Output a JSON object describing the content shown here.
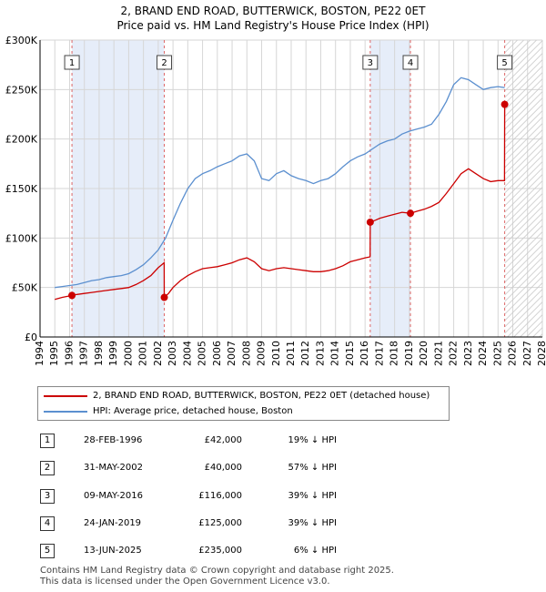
{
  "title_line1": "2, BRAND END ROAD, BUTTERWICK, BOSTON, PE22 0ET",
  "title_line2": "Price paid vs. HM Land Registry's House Price Index (HPI)",
  "colors": {
    "price": "#cc0000",
    "hpi": "#5b8fcf",
    "shade": "#e6edf9",
    "marker_line": "#dd6666",
    "grid": "#d6d6d6"
  },
  "legend": {
    "price_label": "2, BRAND END ROAD, BUTTERWICK, BOSTON, PE22 0ET (detached house)",
    "hpi_label": "HPI: Average price, detached house, Boston"
  },
  "transactions": [
    {
      "num": "1",
      "date": "28-FEB-1996",
      "price": "£42,000",
      "hpi": "19% ↓ HPI"
    },
    {
      "num": "2",
      "date": "31-MAY-2002",
      "price": "£40,000",
      "hpi": "57% ↓ HPI"
    },
    {
      "num": "3",
      "date": "09-MAY-2016",
      "price": "£116,000",
      "hpi": "39% ↓ HPI"
    },
    {
      "num": "4",
      "date": "24-JAN-2019",
      "price": "£125,000",
      "hpi": "39% ↓ HPI"
    },
    {
      "num": "5",
      "date": "13-JUN-2025",
      "price": "£235,000",
      "hpi": "6% ↓ HPI"
    }
  ],
  "footer_line1": "Contains HM Land Registry data © Crown copyright and database right 2025.",
  "footer_line2": "This data is licensed under the Open Government Licence v3.0.",
  "chart_data": {
    "type": "line",
    "title": "Price paid vs. HM Land Registry's House Price Index (HPI)",
    "xlim": [
      1994,
      2028
    ],
    "ylim": [
      0,
      300000
    ],
    "x_ticks": [
      1994,
      1995,
      1996,
      1997,
      1998,
      1999,
      2000,
      2001,
      2002,
      2003,
      2004,
      2005,
      2006,
      2007,
      2008,
      2009,
      2010,
      2011,
      2012,
      2013,
      2014,
      2015,
      2016,
      2017,
      2018,
      2019,
      2020,
      2021,
      2022,
      2023,
      2024,
      2025,
      2026,
      2027,
      2028
    ],
    "y_ticks": [
      0,
      50000,
      100000,
      150000,
      200000,
      250000,
      300000
    ],
    "y_tick_labels": [
      "£0",
      "£50K",
      "£100K",
      "£150K",
      "£200K",
      "£250K",
      "£300K"
    ],
    "shaded_ranges": [
      [
        1996.16,
        2002.41
      ],
      [
        2016.35,
        2019.07
      ]
    ],
    "future_hatch_from": 2025.45,
    "sales": [
      {
        "num": "1",
        "x": 1996.16,
        "y": 42000
      },
      {
        "num": "2",
        "x": 2002.41,
        "y": 40000
      },
      {
        "num": "3",
        "x": 2016.35,
        "y": 116000
      },
      {
        "num": "4",
        "x": 2019.07,
        "y": 125000
      },
      {
        "num": "5",
        "x": 2025.45,
        "y": 235000
      }
    ],
    "series": [
      {
        "name": "HPI: Average price, detached house, Boston",
        "x": [
          1995.0,
          1995.5,
          1996.0,
          1996.5,
          1997.0,
          1997.5,
          1998.0,
          1998.5,
          1999.0,
          1999.5,
          2000.0,
          2000.5,
          2001.0,
          2001.5,
          2002.0,
          2002.5,
          2003.0,
          2003.5,
          2004.0,
          2004.5,
          2005.0,
          2005.5,
          2006.0,
          2006.5,
          2007.0,
          2007.5,
          2008.0,
          2008.5,
          2009.0,
          2009.5,
          2010.0,
          2010.5,
          2011.0,
          2011.5,
          2012.0,
          2012.5,
          2013.0,
          2013.5,
          2014.0,
          2014.5,
          2015.0,
          2015.5,
          2016.0,
          2016.5,
          2017.0,
          2017.5,
          2018.0,
          2018.5,
          2019.0,
          2019.5,
          2020.0,
          2020.5,
          2021.0,
          2021.5,
          2022.0,
          2022.5,
          2023.0,
          2023.5,
          2024.0,
          2024.5,
          2025.0,
          2025.45
        ],
        "y": [
          50000,
          51000,
          52000,
          53000,
          55000,
          57000,
          58000,
          60000,
          61000,
          62000,
          64000,
          68000,
          73000,
          80000,
          88000,
          100000,
          118000,
          135000,
          150000,
          160000,
          165000,
          168000,
          172000,
          175000,
          178000,
          183000,
          185000,
          178000,
          160000,
          158000,
          165000,
          168000,
          163000,
          160000,
          158000,
          155000,
          158000,
          160000,
          165000,
          172000,
          178000,
          182000,
          185000,
          190000,
          195000,
          198000,
          200000,
          205000,
          208000,
          210000,
          212000,
          215000,
          225000,
          238000,
          255000,
          262000,
          260000,
          255000,
          250000,
          252000,
          253000,
          252000
        ]
      },
      {
        "name": "2, BRAND END ROAD, BUTTERWICK, BOSTON, PE22 0ET (detached house)",
        "x": [
          1995.0,
          1995.5,
          1996.16,
          1996.5,
          1997.0,
          1997.5,
          1998.0,
          1998.5,
          1999.0,
          1999.5,
          2000.0,
          2000.5,
          2001.0,
          2001.5,
          2002.0,
          2002.4,
          2002.41,
          2002.7,
          2003.0,
          2003.5,
          2004.0,
          2004.5,
          2005.0,
          2005.5,
          2006.0,
          2006.5,
          2007.0,
          2007.5,
          2008.0,
          2008.5,
          2009.0,
          2009.5,
          2010.0,
          2010.5,
          2011.0,
          2011.5,
          2012.0,
          2012.5,
          2013.0,
          2013.5,
          2014.0,
          2014.5,
          2015.0,
          2015.5,
          2016.0,
          2016.34,
          2016.35,
          2016.7,
          2017.0,
          2017.5,
          2018.0,
          2018.5,
          2019.07,
          2019.5,
          2020.0,
          2020.5,
          2021.0,
          2021.5,
          2022.0,
          2022.5,
          2023.0,
          2023.5,
          2024.0,
          2024.5,
          2025.0,
          2025.44,
          2025.45
        ],
        "y": [
          38000,
          40000,
          42000,
          43000,
          44000,
          45000,
          46000,
          47000,
          48000,
          49000,
          50000,
          53000,
          57000,
          62000,
          70000,
          75000,
          40000,
          44000,
          50000,
          57000,
          62000,
          66000,
          69000,
          70000,
          71000,
          73000,
          75000,
          78000,
          80000,
          76000,
          69000,
          67000,
          69000,
          70000,
          69000,
          68000,
          67000,
          66000,
          66000,
          67000,
          69000,
          72000,
          76000,
          78000,
          80000,
          81000,
          116000,
          118000,
          120000,
          122000,
          124000,
          126000,
          125000,
          127000,
          129000,
          132000,
          136000,
          145000,
          155000,
          165000,
          170000,
          165000,
          160000,
          157000,
          158000,
          158000,
          235000
        ]
      }
    ]
  }
}
